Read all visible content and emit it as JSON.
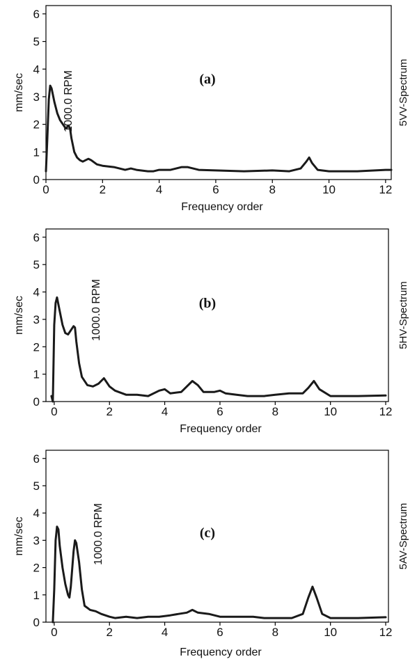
{
  "colors": {
    "line": "#1a1a1a",
    "axis": "#000000",
    "background": "#ffffff"
  },
  "chart_data": [
    {
      "type": "line",
      "panel_label": "(a)",
      "side_label": "5VV-Spectrum",
      "annotation": "1000.0 RPM",
      "xlabel": "Frequency order",
      "ylabel": "mm/sec",
      "xlim": [
        0,
        12.2
      ],
      "ylim": [
        0,
        6.3
      ],
      "x_ticks": [
        0,
        2,
        4,
        6,
        8,
        10,
        12
      ],
      "y_ticks": [
        0,
        1,
        2,
        3,
        4,
        5,
        6
      ],
      "grid": false,
      "series": [
        {
          "x": [
            0,
            0.05,
            0.1,
            0.15,
            0.2,
            0.3,
            0.4,
            0.5,
            0.6,
            0.7,
            0.8,
            0.85,
            0.9,
            1.0,
            1.1,
            1.2,
            1.3,
            1.4,
            1.5,
            1.6,
            1.8,
            2.0,
            2.4,
            2.8,
            3.0,
            3.2,
            3.6,
            3.8,
            4.0,
            4.4,
            4.6,
            4.8,
            5.0,
            5.2,
            5.4,
            6.0,
            7.0,
            8.0,
            8.6,
            9.0,
            9.2,
            9.3,
            9.4,
            9.6,
            10.0,
            11.0,
            12.0,
            12.2
          ],
          "y": [
            0.3,
            1.5,
            2.9,
            3.4,
            3.3,
            2.8,
            2.4,
            2.15,
            2.0,
            1.85,
            1.95,
            1.85,
            1.5,
            1.0,
            0.8,
            0.7,
            0.65,
            0.7,
            0.75,
            0.7,
            0.55,
            0.5,
            0.45,
            0.35,
            0.4,
            0.35,
            0.3,
            0.3,
            0.35,
            0.35,
            0.4,
            0.45,
            0.45,
            0.4,
            0.35,
            0.33,
            0.3,
            0.33,
            0.3,
            0.4,
            0.65,
            0.8,
            0.6,
            0.35,
            0.3,
            0.3,
            0.35,
            0.35
          ]
        }
      ]
    },
    {
      "type": "line",
      "panel_label": "(b)",
      "side_label": "5HV-Spectrum",
      "annotation": "1000.0 RPM",
      "xlabel": "Frequency order",
      "ylabel": "mm/sec",
      "xlim": [
        -0.3,
        12.1
      ],
      "ylim": [
        0,
        6.3
      ],
      "x_ticks": [
        0,
        2,
        4,
        6,
        8,
        10,
        12
      ],
      "y_ticks": [
        0,
        1,
        2,
        3,
        4,
        5,
        6
      ],
      "grid": false,
      "series": [
        {
          "x": [
            -0.1,
            -0.05,
            0,
            0.05,
            0.1,
            0.2,
            0.3,
            0.4,
            0.5,
            0.6,
            0.7,
            0.75,
            0.8,
            0.9,
            1.0,
            1.2,
            1.4,
            1.6,
            1.8,
            2.0,
            2.2,
            2.6,
            3.0,
            3.4,
            3.8,
            4.0,
            4.2,
            4.6,
            4.8,
            5.0,
            5.2,
            5.4,
            5.8,
            6.0,
            6.2,
            6.6,
            7.0,
            7.6,
            8.0,
            8.5,
            9.0,
            9.2,
            9.4,
            9.6,
            10.0,
            11.0,
            12.0
          ],
          "y": [
            0.2,
            0,
            2.8,
            3.6,
            3.8,
            3.3,
            2.8,
            2.5,
            2.45,
            2.6,
            2.75,
            2.7,
            2.2,
            1.4,
            0.9,
            0.6,
            0.55,
            0.65,
            0.85,
            0.55,
            0.4,
            0.25,
            0.25,
            0.2,
            0.4,
            0.45,
            0.3,
            0.35,
            0.55,
            0.75,
            0.6,
            0.35,
            0.35,
            0.4,
            0.3,
            0.25,
            0.2,
            0.2,
            0.25,
            0.3,
            0.3,
            0.5,
            0.75,
            0.45,
            0.2,
            0.2,
            0.22
          ]
        }
      ]
    },
    {
      "type": "line",
      "panel_label": "(c)",
      "side_label": "5AV-Spectrum",
      "annotation": "1000.0 RPM",
      "xlabel": "Frequency order",
      "ylabel": "mm/sec",
      "xlim": [
        -0.3,
        12.1
      ],
      "ylim": [
        0,
        6.3
      ],
      "x_ticks": [
        0,
        2,
        4,
        6,
        8,
        10,
        12
      ],
      "y_ticks": [
        0,
        1,
        2,
        3,
        4,
        5,
        6
      ],
      "grid": false,
      "series": [
        {
          "x": [
            -0.05,
            0,
            0.05,
            0.1,
            0.15,
            0.2,
            0.3,
            0.4,
            0.5,
            0.55,
            0.6,
            0.7,
            0.75,
            0.8,
            0.9,
            1.0,
            1.1,
            1.3,
            1.5,
            1.7,
            2.0,
            2.2,
            2.6,
            3.0,
            3.4,
            3.8,
            4.2,
            4.5,
            4.8,
            5.0,
            5.2,
            5.6,
            6.0,
            6.4,
            6.8,
            7.2,
            7.6,
            8.0,
            8.6,
            9.0,
            9.2,
            9.35,
            9.5,
            9.7,
            10.0,
            11.0,
            12.0
          ],
          "y": [
            0,
            1.2,
            3.0,
            3.5,
            3.4,
            2.8,
            2.0,
            1.4,
            1.0,
            0.9,
            1.3,
            2.6,
            3.0,
            2.9,
            2.2,
            1.2,
            0.6,
            0.45,
            0.4,
            0.3,
            0.2,
            0.15,
            0.2,
            0.15,
            0.2,
            0.2,
            0.25,
            0.3,
            0.35,
            0.45,
            0.35,
            0.3,
            0.2,
            0.2,
            0.2,
            0.2,
            0.15,
            0.15,
            0.15,
            0.3,
            0.9,
            1.3,
            0.9,
            0.3,
            0.15,
            0.15,
            0.18
          ]
        }
      ]
    }
  ]
}
